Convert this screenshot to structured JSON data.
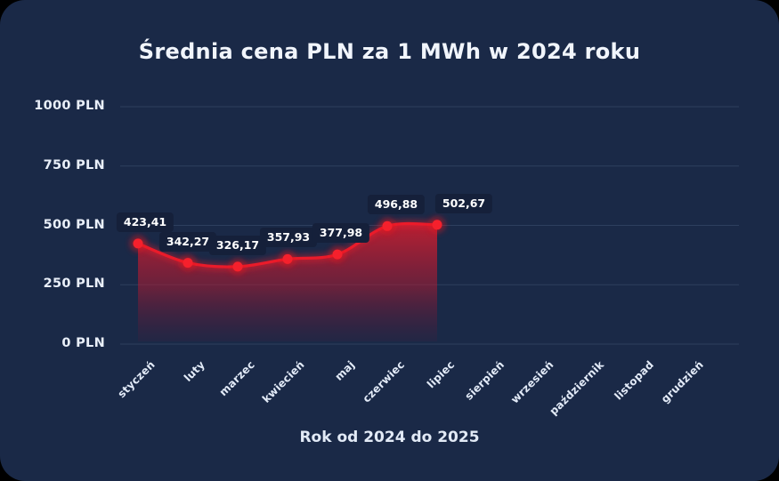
{
  "window": {
    "surface_color": "#1a2947",
    "outside_color": "#000000"
  },
  "chart_data": {
    "type": "area",
    "title": "Średnia cena PLN za 1 MWh w 2024 roku",
    "xlabel": "Rok od 2024 do 2025",
    "ylabel": "",
    "categories": [
      "styczeń",
      "luty",
      "marzec",
      "kwiecień",
      "maj",
      "czerwiec",
      "lipiec",
      "sierpień",
      "wrzesień",
      "październik",
      "listopad",
      "grudzień"
    ],
    "values": [
      423.41,
      342.27,
      326.17,
      357.93,
      377.98,
      496.88,
      502.67
    ],
    "point_labels": [
      "423,41",
      "342,27",
      "326,17",
      "357,93",
      "377,98",
      "496,88",
      "502,67"
    ],
    "ylim": [
      0,
      1000
    ],
    "yticks": [
      {
        "value": 0,
        "label": "0 PLN"
      },
      {
        "value": 250,
        "label": "250 PLN"
      },
      {
        "value": 500,
        "label": "500 PLN"
      },
      {
        "value": 750,
        "label": "750 PLN"
      },
      {
        "value": 1000,
        "label": "1000 PLN"
      }
    ],
    "grid": true,
    "legend": "none",
    "colors": {
      "line": "#ea1b2a",
      "dot_core": "#f5202c",
      "dot_glow": "#e8121f",
      "area_top": "#d91e2e",
      "area_mid": "#a81b33",
      "area_bottom": "#5c1335",
      "gridline": "#aac4eb",
      "badge_bg": "#15203a",
      "text": "#e9eff9"
    }
  }
}
